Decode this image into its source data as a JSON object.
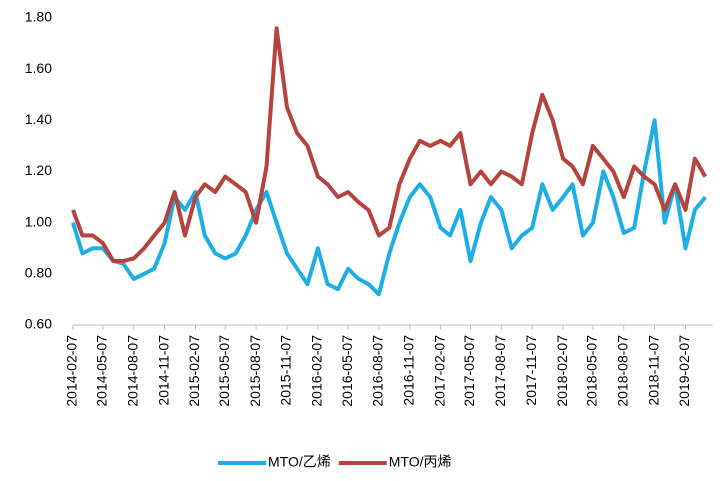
{
  "chart_data": {
    "type": "line",
    "x": [
      "2014-02-07",
      "2014-03-07",
      "2014-04-07",
      "2014-05-07",
      "2014-06-07",
      "2014-07-07",
      "2014-08-07",
      "2014-09-07",
      "2014-10-07",
      "2014-11-07",
      "2014-12-07",
      "2015-01-07",
      "2015-02-07",
      "2015-03-07",
      "2015-04-07",
      "2015-05-07",
      "2015-06-07",
      "2015-07-07",
      "2015-08-07",
      "2015-09-07",
      "2015-10-07",
      "2015-11-07",
      "2015-12-07",
      "2016-01-07",
      "2016-02-07",
      "2016-03-07",
      "2016-04-07",
      "2016-05-07",
      "2016-06-07",
      "2016-07-07",
      "2016-08-07",
      "2016-09-07",
      "2016-10-07",
      "2016-11-07",
      "2016-12-07",
      "2017-01-07",
      "2017-02-07",
      "2017-03-07",
      "2017-04-07",
      "2017-05-07",
      "2017-06-07",
      "2017-07-07",
      "2017-08-07",
      "2017-09-07",
      "2017-10-07",
      "2017-11-07",
      "2017-12-07",
      "2018-01-07",
      "2018-02-07",
      "2018-03-07",
      "2018-04-07",
      "2018-05-07",
      "2018-06-07",
      "2018-07-07",
      "2018-08-07",
      "2018-09-07",
      "2018-10-07",
      "2018-11-07",
      "2018-12-07",
      "2019-01-07",
      "2019-02-07",
      "2019-03-07",
      "2019-04-07"
    ],
    "series": [
      {
        "name": "MTO/乙烯",
        "color": "#1eaee6",
        "values": [
          1.0,
          0.88,
          0.9,
          0.9,
          0.85,
          0.84,
          0.78,
          0.8,
          0.82,
          0.92,
          1.1,
          1.05,
          1.12,
          0.95,
          0.88,
          0.86,
          0.88,
          0.95,
          1.05,
          1.12,
          1.0,
          0.88,
          0.82,
          0.76,
          0.9,
          0.76,
          0.74,
          0.82,
          0.78,
          0.76,
          0.72,
          0.88,
          1.0,
          1.1,
          1.15,
          1.1,
          0.98,
          0.95,
          1.05,
          0.85,
          1.0,
          1.1,
          1.05,
          0.9,
          0.95,
          0.98,
          1.15,
          1.05,
          1.1,
          1.15,
          0.95,
          1.0,
          1.2,
          1.1,
          0.96,
          0.98,
          1.2,
          1.4,
          1.0,
          1.15,
          0.9,
          1.05,
          1.1
        ]
      },
      {
        "name": "MTO/丙烯",
        "color": "#b5443e",
        "values": [
          1.05,
          0.95,
          0.95,
          0.92,
          0.85,
          0.85,
          0.86,
          0.9,
          0.95,
          1.0,
          1.12,
          0.95,
          1.1,
          1.15,
          1.12,
          1.18,
          1.15,
          1.12,
          1.0,
          1.22,
          1.76,
          1.45,
          1.35,
          1.3,
          1.18,
          1.15,
          1.1,
          1.12,
          1.08,
          1.05,
          0.95,
          0.98,
          1.15,
          1.25,
          1.32,
          1.3,
          1.32,
          1.3,
          1.35,
          1.15,
          1.2,
          1.15,
          1.2,
          1.18,
          1.15,
          1.35,
          1.5,
          1.4,
          1.25,
          1.22,
          1.15,
          1.3,
          1.25,
          1.2,
          1.1,
          1.22,
          1.18,
          1.15,
          1.05,
          1.15,
          1.05,
          1.25,
          1.18
        ]
      }
    ],
    "xlim": [
      "2014-02-07",
      "2019-04-30"
    ],
    "xticks": [
      "2014-02-07",
      "2014-05-07",
      "2014-08-07",
      "2014-11-07",
      "2015-02-07",
      "2015-05-07",
      "2015-08-07",
      "2015-11-07",
      "2016-02-07",
      "2016-05-07",
      "2016-08-07",
      "2016-11-07",
      "2017-02-07",
      "2017-05-07",
      "2017-08-07",
      "2017-11-07",
      "2018-02-07",
      "2018-05-07",
      "2018-08-07",
      "2018-11-07",
      "2019-02-07"
    ],
    "ylim": [
      0.6,
      1.8
    ],
    "yticks": [
      {
        "value": 0.6,
        "label": "0.60"
      },
      {
        "value": 0.8,
        "label": "0.80"
      },
      {
        "value": 1.0,
        "label": "1.00"
      },
      {
        "value": 1.2,
        "label": "1.20"
      },
      {
        "value": 1.4,
        "label": "1.40"
      },
      {
        "value": 1.6,
        "label": "1.60"
      },
      {
        "value": 1.8,
        "label": "1.80"
      }
    ],
    "grid": false,
    "legend": "bottom"
  }
}
